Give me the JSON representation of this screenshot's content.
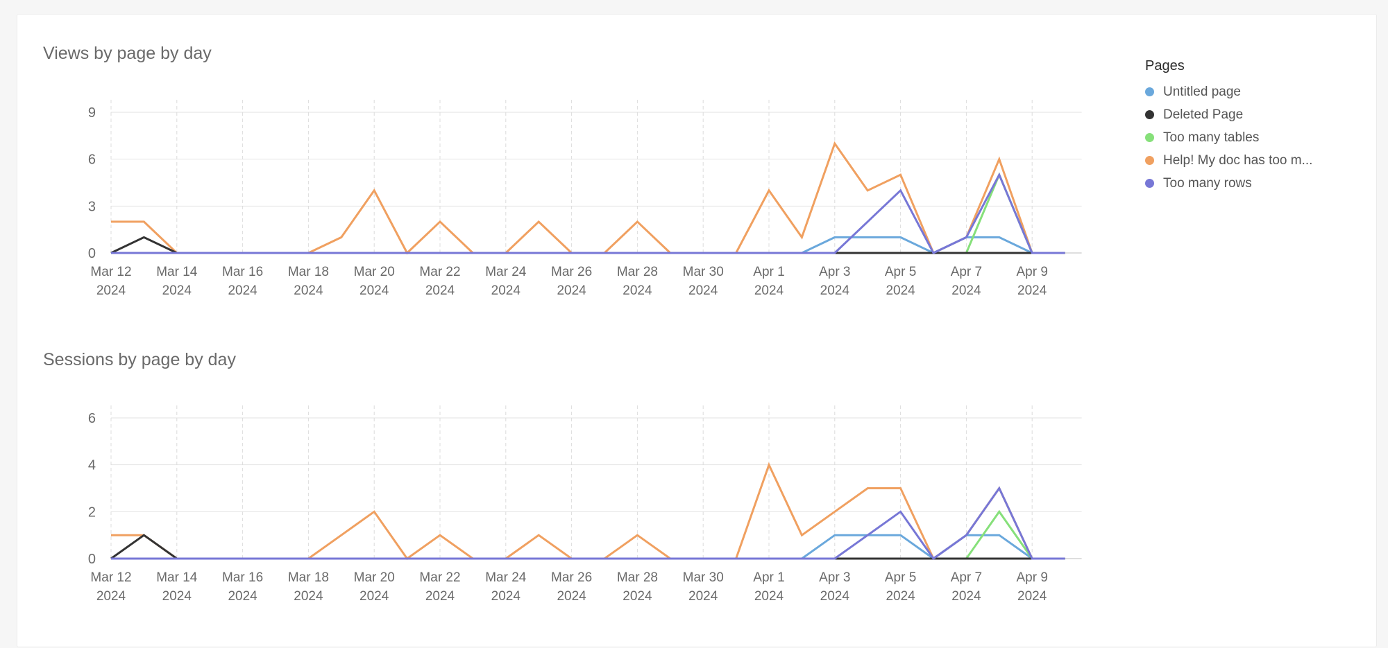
{
  "legend": {
    "title": "Pages",
    "items": [
      {
        "label": "Untitled page",
        "color": "#6aa8dc"
      },
      {
        "label": "Deleted Page",
        "color": "#333333"
      },
      {
        "label": "Too many tables",
        "color": "#86e07a"
      },
      {
        "label": "Help! My doc has too m...",
        "color": "#f0a060"
      },
      {
        "label": "Too many rows",
        "color": "#7777d6"
      }
    ]
  },
  "chart_data": [
    {
      "type": "line",
      "title": "Views by page by day",
      "x": [
        "2024-03-12",
        "2024-03-13",
        "2024-03-14",
        "2024-03-15",
        "2024-03-16",
        "2024-03-17",
        "2024-03-18",
        "2024-03-19",
        "2024-03-20",
        "2024-03-21",
        "2024-03-22",
        "2024-03-23",
        "2024-03-24",
        "2024-03-25",
        "2024-03-26",
        "2024-03-27",
        "2024-03-28",
        "2024-03-29",
        "2024-03-30",
        "2024-03-31",
        "2024-04-01",
        "2024-04-02",
        "2024-04-03",
        "2024-04-04",
        "2024-04-05",
        "2024-04-06",
        "2024-04-07",
        "2024-04-08",
        "2024-04-09",
        "2024-04-10"
      ],
      "x_tick_labels": [
        [
          "Mar 12",
          "2024"
        ],
        [
          "Mar 14",
          "2024"
        ],
        [
          "Mar 16",
          "2024"
        ],
        [
          "Mar 18",
          "2024"
        ],
        [
          "Mar 20",
          "2024"
        ],
        [
          "Mar 22",
          "2024"
        ],
        [
          "Mar 24",
          "2024"
        ],
        [
          "Mar 26",
          "2024"
        ],
        [
          "Mar 28",
          "2024"
        ],
        [
          "Mar 30",
          "2024"
        ],
        [
          "Apr 1",
          "2024"
        ],
        [
          "Apr 3",
          "2024"
        ],
        [
          "Apr 5",
          "2024"
        ],
        [
          "Apr 7",
          "2024"
        ],
        [
          "Apr 9",
          "2024"
        ]
      ],
      "ylim": [
        0,
        9
      ],
      "yticks": [
        0,
        3,
        6,
        9
      ],
      "series": [
        {
          "name": "Help! My doc has too m...",
          "color": "#f0a060",
          "values": [
            2,
            2,
            0,
            0,
            0,
            0,
            0,
            1,
            4,
            0,
            2,
            0,
            0,
            2,
            0,
            0,
            2,
            0,
            0,
            0,
            4,
            1,
            7,
            4,
            5,
            0,
            1,
            6,
            0,
            0
          ]
        },
        {
          "name": "Untitled page",
          "color": "#6aa8dc",
          "values": [
            0,
            0,
            0,
            0,
            0,
            0,
            0,
            0,
            0,
            0,
            0,
            0,
            0,
            0,
            0,
            0,
            0,
            0,
            0,
            0,
            0,
            0,
            1,
            1,
            1,
            0,
            1,
            1,
            0,
            0
          ]
        },
        {
          "name": "Too many tables",
          "color": "#86e07a",
          "values": [
            0,
            0,
            0,
            0,
            0,
            0,
            0,
            0,
            0,
            0,
            0,
            0,
            0,
            0,
            0,
            0,
            0,
            0,
            0,
            0,
            0,
            0,
            0,
            0,
            0,
            0,
            0,
            5,
            0,
            0
          ]
        },
        {
          "name": "Deleted Page",
          "color": "#333333",
          "values": [
            0,
            1,
            0,
            0,
            0,
            0,
            0,
            0,
            0,
            0,
            0,
            0,
            0,
            0,
            0,
            0,
            0,
            0,
            0,
            0,
            0,
            0,
            0,
            0,
            0,
            0,
            0,
            0,
            0,
            0
          ]
        },
        {
          "name": "Too many rows",
          "color": "#7777d6",
          "values": [
            0,
            0,
            0,
            0,
            0,
            0,
            0,
            0,
            0,
            0,
            0,
            0,
            0,
            0,
            0,
            0,
            0,
            0,
            0,
            0,
            0,
            0,
            0,
            2,
            4,
            0,
            1,
            5,
            0,
            0
          ]
        }
      ]
    },
    {
      "type": "line",
      "title": "Sessions by page by day",
      "x": [
        "2024-03-12",
        "2024-03-13",
        "2024-03-14",
        "2024-03-15",
        "2024-03-16",
        "2024-03-17",
        "2024-03-18",
        "2024-03-19",
        "2024-03-20",
        "2024-03-21",
        "2024-03-22",
        "2024-03-23",
        "2024-03-24",
        "2024-03-25",
        "2024-03-26",
        "2024-03-27",
        "2024-03-28",
        "2024-03-29",
        "2024-03-30",
        "2024-03-31",
        "2024-04-01",
        "2024-04-02",
        "2024-04-03",
        "2024-04-04",
        "2024-04-05",
        "2024-04-06",
        "2024-04-07",
        "2024-04-08",
        "2024-04-09",
        "2024-04-10"
      ],
      "x_tick_labels": [
        [
          "Mar 12",
          "2024"
        ],
        [
          "Mar 14",
          "2024"
        ],
        [
          "Mar 16",
          "2024"
        ],
        [
          "Mar 18",
          "2024"
        ],
        [
          "Mar 20",
          "2024"
        ],
        [
          "Mar 22",
          "2024"
        ],
        [
          "Mar 24",
          "2024"
        ],
        [
          "Mar 26",
          "2024"
        ],
        [
          "Mar 28",
          "2024"
        ],
        [
          "Mar 30",
          "2024"
        ],
        [
          "Apr 1",
          "2024"
        ],
        [
          "Apr 3",
          "2024"
        ],
        [
          "Apr 5",
          "2024"
        ],
        [
          "Apr 7",
          "2024"
        ],
        [
          "Apr 9",
          "2024"
        ]
      ],
      "ylim": [
        0,
        6
      ],
      "yticks": [
        0,
        2,
        4,
        6
      ],
      "series": [
        {
          "name": "Help! My doc has too m...",
          "color": "#f0a060",
          "values": [
            1,
            1,
            0,
            0,
            0,
            0,
            0,
            1,
            2,
            0,
            1,
            0,
            0,
            1,
            0,
            0,
            1,
            0,
            0,
            0,
            4,
            1,
            2,
            3,
            3,
            0,
            1,
            3,
            0,
            0
          ]
        },
        {
          "name": "Untitled page",
          "color": "#6aa8dc",
          "values": [
            0,
            0,
            0,
            0,
            0,
            0,
            0,
            0,
            0,
            0,
            0,
            0,
            0,
            0,
            0,
            0,
            0,
            0,
            0,
            0,
            0,
            0,
            1,
            1,
            1,
            0,
            1,
            1,
            0,
            0
          ]
        },
        {
          "name": "Too many tables",
          "color": "#86e07a",
          "values": [
            0,
            0,
            0,
            0,
            0,
            0,
            0,
            0,
            0,
            0,
            0,
            0,
            0,
            0,
            0,
            0,
            0,
            0,
            0,
            0,
            0,
            0,
            0,
            0,
            0,
            0,
            0,
            2,
            0,
            0
          ]
        },
        {
          "name": "Deleted Page",
          "color": "#333333",
          "values": [
            0,
            1,
            0,
            0,
            0,
            0,
            0,
            0,
            0,
            0,
            0,
            0,
            0,
            0,
            0,
            0,
            0,
            0,
            0,
            0,
            0,
            0,
            0,
            0,
            0,
            0,
            0,
            0,
            0,
            0
          ]
        },
        {
          "name": "Too many rows",
          "color": "#7777d6",
          "values": [
            0,
            0,
            0,
            0,
            0,
            0,
            0,
            0,
            0,
            0,
            0,
            0,
            0,
            0,
            0,
            0,
            0,
            0,
            0,
            0,
            0,
            0,
            0,
            1,
            2,
            0,
            1,
            3,
            0,
            0
          ]
        }
      ]
    }
  ]
}
